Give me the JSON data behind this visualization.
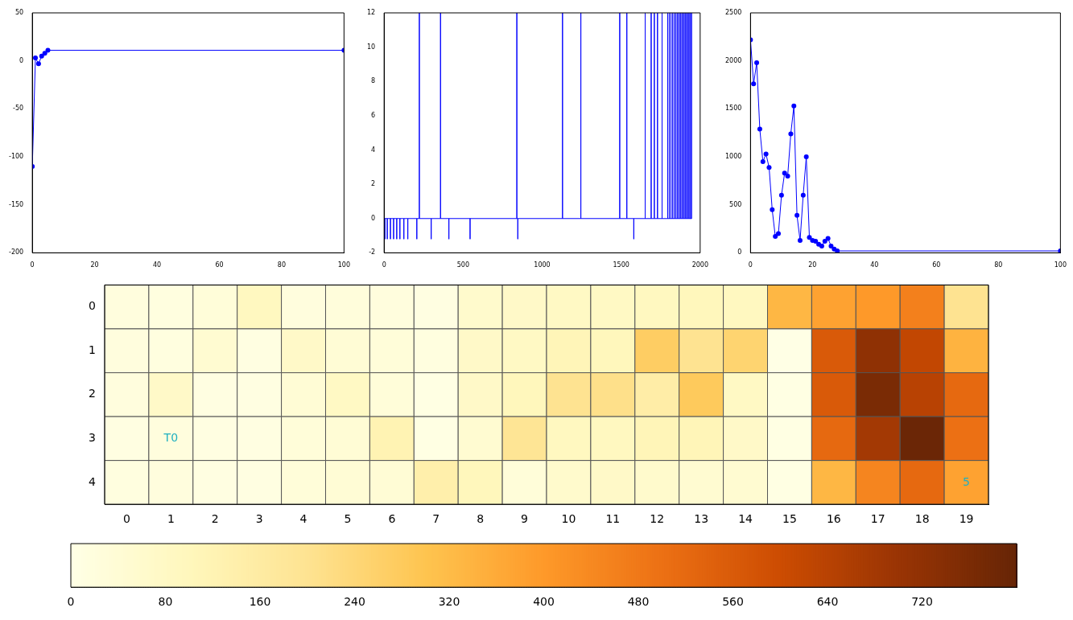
{
  "chart_data": [
    {
      "type": "line",
      "xlim": [
        0,
        100
      ],
      "xticks": [
        0,
        20,
        40,
        60,
        80,
        100
      ],
      "ylim": [
        -200,
        50
      ],
      "yticks": [
        -200,
        -150,
        -100,
        -50,
        0,
        50
      ],
      "grid": false,
      "marker": "circle",
      "series": [
        {
          "color": "#0000ff",
          "x": [
            0,
            1,
            2,
            3,
            4,
            5,
            100
          ],
          "values": [
            -110,
            3,
            -3,
            5,
            8,
            11,
            11
          ]
        }
      ]
    },
    {
      "type": "line",
      "xlim": [
        0,
        2000
      ],
      "xticks": [
        0,
        500,
        1000,
        1500,
        2000
      ],
      "ylim": [
        -2,
        12
      ],
      "yticks": [
        -2,
        0,
        2,
        4,
        6,
        8,
        10,
        12
      ],
      "grid": false,
      "series": [
        {
          "color": "#0000ff",
          "x": [
            5,
            5,
            5,
            20,
            20,
            20,
            40,
            40,
            40,
            60,
            60,
            60,
            80,
            80,
            80,
            100,
            100,
            100,
            125,
            125,
            125,
            150,
            150,
            150,
            207,
            207,
            207,
            223,
            223,
            223,
            298,
            298,
            298,
            357,
            357,
            357,
            410,
            410,
            410,
            544,
            544,
            544,
            840,
            840,
            840,
            846,
            846,
            846,
            1129,
            1129,
            1129,
            1245,
            1245,
            1245,
            1491,
            1491,
            1491,
            1536,
            1536,
            1536,
            1580,
            1580,
            1580,
            1652,
            1652,
            1652,
            1690,
            1690,
            1690,
            1710,
            1710,
            1710,
            1730,
            1730,
            1730,
            1759,
            1759,
            1759,
            1795,
            1795,
            1795,
            1805,
            1805,
            1805,
            1815,
            1815,
            1815,
            1825,
            1825,
            1825,
            1835,
            1835,
            1835,
            1845,
            1845,
            1845,
            1855,
            1855,
            1855,
            1865,
            1865,
            1865,
            1875,
            1875,
            1875,
            1885,
            1885,
            1885,
            1895,
            1895,
            1895,
            1905,
            1905,
            1905,
            1915,
            1915,
            1915,
            1925,
            1925,
            1925,
            1935,
            1935,
            1935,
            1945,
            1945,
            1945
          ],
          "values": [
            0,
            -1.2,
            0,
            0,
            -1.2,
            0,
            0,
            -1.2,
            0,
            0,
            -1.2,
            0,
            0,
            -1.2,
            0,
            0,
            -1.2,
            0,
            0,
            -1.2,
            0,
            0,
            -1.2,
            0,
            0,
            -1.2,
            0,
            0,
            12,
            0,
            0,
            -1.2,
            0,
            0,
            12,
            0,
            0,
            -1.2,
            0,
            0,
            -1.2,
            0,
            0,
            12,
            0,
            0,
            -1.2,
            0,
            0,
            12,
            0,
            0,
            12,
            0,
            0,
            12,
            0,
            0,
            12,
            0,
            0,
            -1.2,
            0,
            0,
            12,
            0,
            0,
            12,
            0,
            0,
            12,
            0,
            0,
            12,
            0,
            0,
            12,
            0,
            0,
            12,
            0,
            0,
            12,
            0,
            0,
            12,
            0,
            0,
            12,
            0,
            0,
            12,
            0,
            0,
            12,
            0,
            0,
            12,
            0,
            0,
            12,
            0,
            0,
            12,
            0,
            0,
            12,
            0,
            0,
            12,
            0,
            0,
            12,
            0,
            0,
            12,
            0,
            0,
            12,
            0,
            0,
            12,
            0,
            0,
            12,
            0
          ]
        }
      ]
    },
    {
      "type": "line",
      "xlim": [
        0,
        100
      ],
      "xticks": [
        0,
        20,
        40,
        60,
        80,
        100
      ],
      "ylim": [
        0,
        2500
      ],
      "yticks": [
        0,
        500,
        1000,
        1500,
        2000,
        2500
      ],
      "grid": false,
      "marker": "circle",
      "series": [
        {
          "color": "#0000ff",
          "x": [
            0,
            1,
            2,
            3,
            4,
            5,
            6,
            7,
            8,
            9,
            10,
            11,
            12,
            13,
            14,
            15,
            16,
            17,
            18,
            19,
            20,
            21,
            22,
            23,
            24,
            25,
            26,
            27,
            28,
            100
          ],
          "values": [
            2220,
            1760,
            1980,
            1290,
            950,
            1030,
            890,
            450,
            170,
            200,
            600,
            830,
            800,
            1240,
            1530,
            390,
            130,
            600,
            1000,
            160,
            130,
            120,
            90,
            70,
            120,
            150,
            70,
            40,
            20,
            20
          ]
        }
      ]
    },
    {
      "type": "heatmap",
      "categories": [
        "0",
        "1",
        "2",
        "3",
        "4",
        "5",
        "6",
        "7",
        "8",
        "9",
        "10",
        "11",
        "12",
        "13",
        "14",
        "15",
        "16",
        "17",
        "18",
        "19"
      ],
      "y_categories": [
        "0",
        "1",
        "2",
        "3",
        "4"
      ],
      "cells": [
        [
          20,
          15,
          30,
          90,
          20,
          25,
          20,
          10,
          60,
          70,
          80,
          80,
          90,
          100,
          90,
          330,
          380,
          400,
          460,
          200
        ],
        [
          20,
          15,
          50,
          10,
          70,
          40,
          30,
          15,
          70,
          80,
          110,
          100,
          270,
          200,
          250,
          0,
          560,
          720,
          620,
          340
        ],
        [
          20,
          70,
          10,
          10,
          40,
          80,
          30,
          5,
          70,
          100,
          200,
          210,
          150,
          280,
          80,
          5,
          560,
          760,
          640,
          520
        ],
        [
          10,
          20,
          10,
          10,
          30,
          40,
          120,
          5,
          50,
          190,
          90,
          90,
          110,
          110,
          70,
          5,
          520,
          680,
          790,
          500
        ],
        [
          15,
          20,
          10,
          10,
          30,
          40,
          40,
          140,
          100,
          30,
          60,
          70,
          60,
          50,
          50,
          5,
          330,
          450,
          520,
          380
        ]
      ],
      "clim": [
        0,
        800
      ],
      "cticks": [
        0,
        80,
        160,
        240,
        320,
        400,
        480,
        560,
        640,
        720
      ],
      "annotations": [
        "T0",
        "5"
      ]
    }
  ]
}
